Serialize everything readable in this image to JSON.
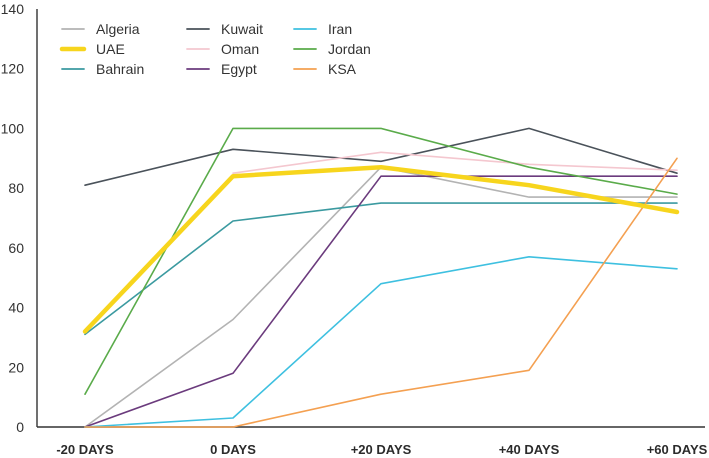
{
  "chart_data": {
    "type": "line",
    "title": "",
    "xlabel": "",
    "ylabel": "",
    "categories": [
      "-20 DAYS",
      "0 DAYS",
      "+20 DAYS",
      "+40 DAYS",
      "+60 DAYS"
    ],
    "ylim": [
      0,
      140
    ],
    "yticks": [
      0,
      20,
      40,
      60,
      80,
      100,
      120,
      140
    ],
    "grid": false,
    "legend_position": "top-left",
    "series": [
      {
        "name": "Algeria",
        "color": "#b3b3b3",
        "width": 1.6,
        "values": [
          0,
          36,
          87,
          77,
          77
        ]
      },
      {
        "name": "UAE",
        "color": "#f7d51d",
        "width": 4.5,
        "values": [
          32,
          84,
          87,
          81,
          72
        ]
      },
      {
        "name": "Bahrain",
        "color": "#3b9aa0",
        "width": 1.6,
        "values": [
          31,
          69,
          75,
          75,
          75
        ]
      },
      {
        "name": "Kuwait",
        "color": "#4a525a",
        "width": 1.6,
        "values": [
          81,
          93,
          89,
          100,
          85
        ]
      },
      {
        "name": "Oman",
        "color": "#f4c7cf",
        "width": 1.6,
        "values": [
          null,
          85,
          92,
          88,
          86
        ]
      },
      {
        "name": "Egypt",
        "color": "#6b3b7d",
        "width": 1.6,
        "values": [
          0,
          18,
          84,
          84,
          84
        ]
      },
      {
        "name": "Iran",
        "color": "#3ec0e0",
        "width": 1.6,
        "values": [
          0,
          3,
          48,
          57,
          53
        ]
      },
      {
        "name": "Jordan",
        "color": "#5aab4a",
        "width": 1.6,
        "values": [
          11,
          100,
          100,
          87,
          78
        ]
      },
      {
        "name": "KSA",
        "color": "#f4a051",
        "width": 1.6,
        "values": [
          0,
          0,
          11,
          19,
          90
        ]
      }
    ]
  }
}
